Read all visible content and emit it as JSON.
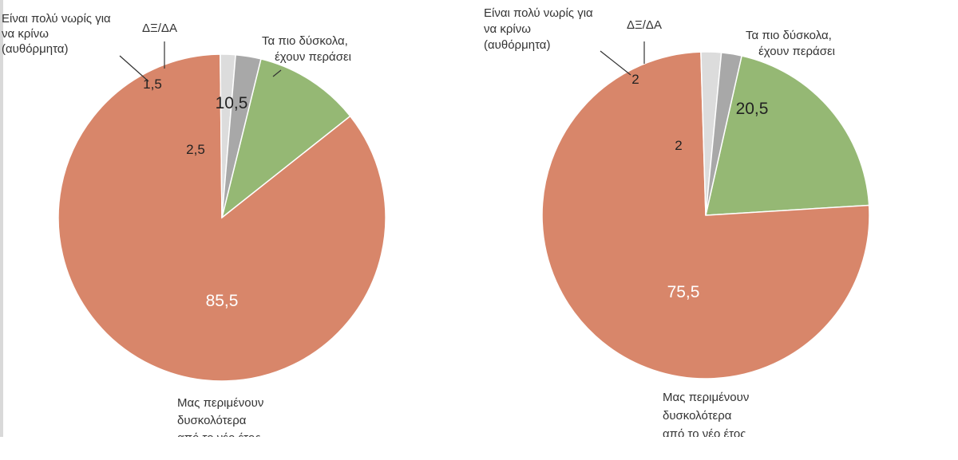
{
  "chart_data": [
    {
      "type": "pie",
      "categories": [
        "Τα πιο δύσκολα, έχουν περάσει",
        "Μας περιμένουν δυσκολότερα",
        "Είναι πολύ νωρίς για να κρίνω (αυθόρμητα)",
        "ΔΞ/ΔΑ"
      ],
      "values": [
        10.5,
        85.5,
        1.5,
        2.5
      ],
      "value_labels": [
        "10,5",
        "85,5",
        "1,5",
        "2,5"
      ],
      "colors": [
        "#95b874",
        "#d8866a",
        "#dcdcdc",
        "#a8a8a8"
      ]
    },
    {
      "type": "pie",
      "categories": [
        "Τα πιο δύσκολα, έχουν περάσει",
        "Μας περιμένουν δυσκολότερα από το νέο έτος",
        "Είναι πολύ νωρίς για να κρίνω (αυθόρμητα)",
        "ΔΞ/ΔΑ"
      ],
      "values": [
        20.5,
        75.5,
        2,
        2
      ],
      "value_labels": [
        "20,5",
        "75,5",
        "2",
        "2"
      ],
      "colors": [
        "#95b874",
        "#d8866a",
        "#dcdcdc",
        "#a8a8a8"
      ]
    }
  ],
  "labels": {
    "left": {
      "early": [
        "Είναι πολύ νωρίς για",
        "να κρίνω",
        "(αυθόρμητα)"
      ],
      "dk": "ΔΞ/ΔΑ",
      "past": [
        "Τα πιο δύσκολα,",
        "έχουν περάσει"
      ],
      "await": [
        "Μας περιμένουν",
        "δυσκολότερα",
        "από το νέο έτος"
      ]
    },
    "right": {
      "early": [
        "Είναι πολύ νωρίς για",
        "να κρίνω",
        "(αυθόρμητα)"
      ],
      "dk": "ΔΞ/ΔΑ",
      "past": [
        "Τα πιο δύσκολα,",
        "έχουν περάσει"
      ],
      "await": [
        "Μας περιμένουν",
        "δυσκολότερα",
        "από το νέο έτος"
      ]
    }
  }
}
